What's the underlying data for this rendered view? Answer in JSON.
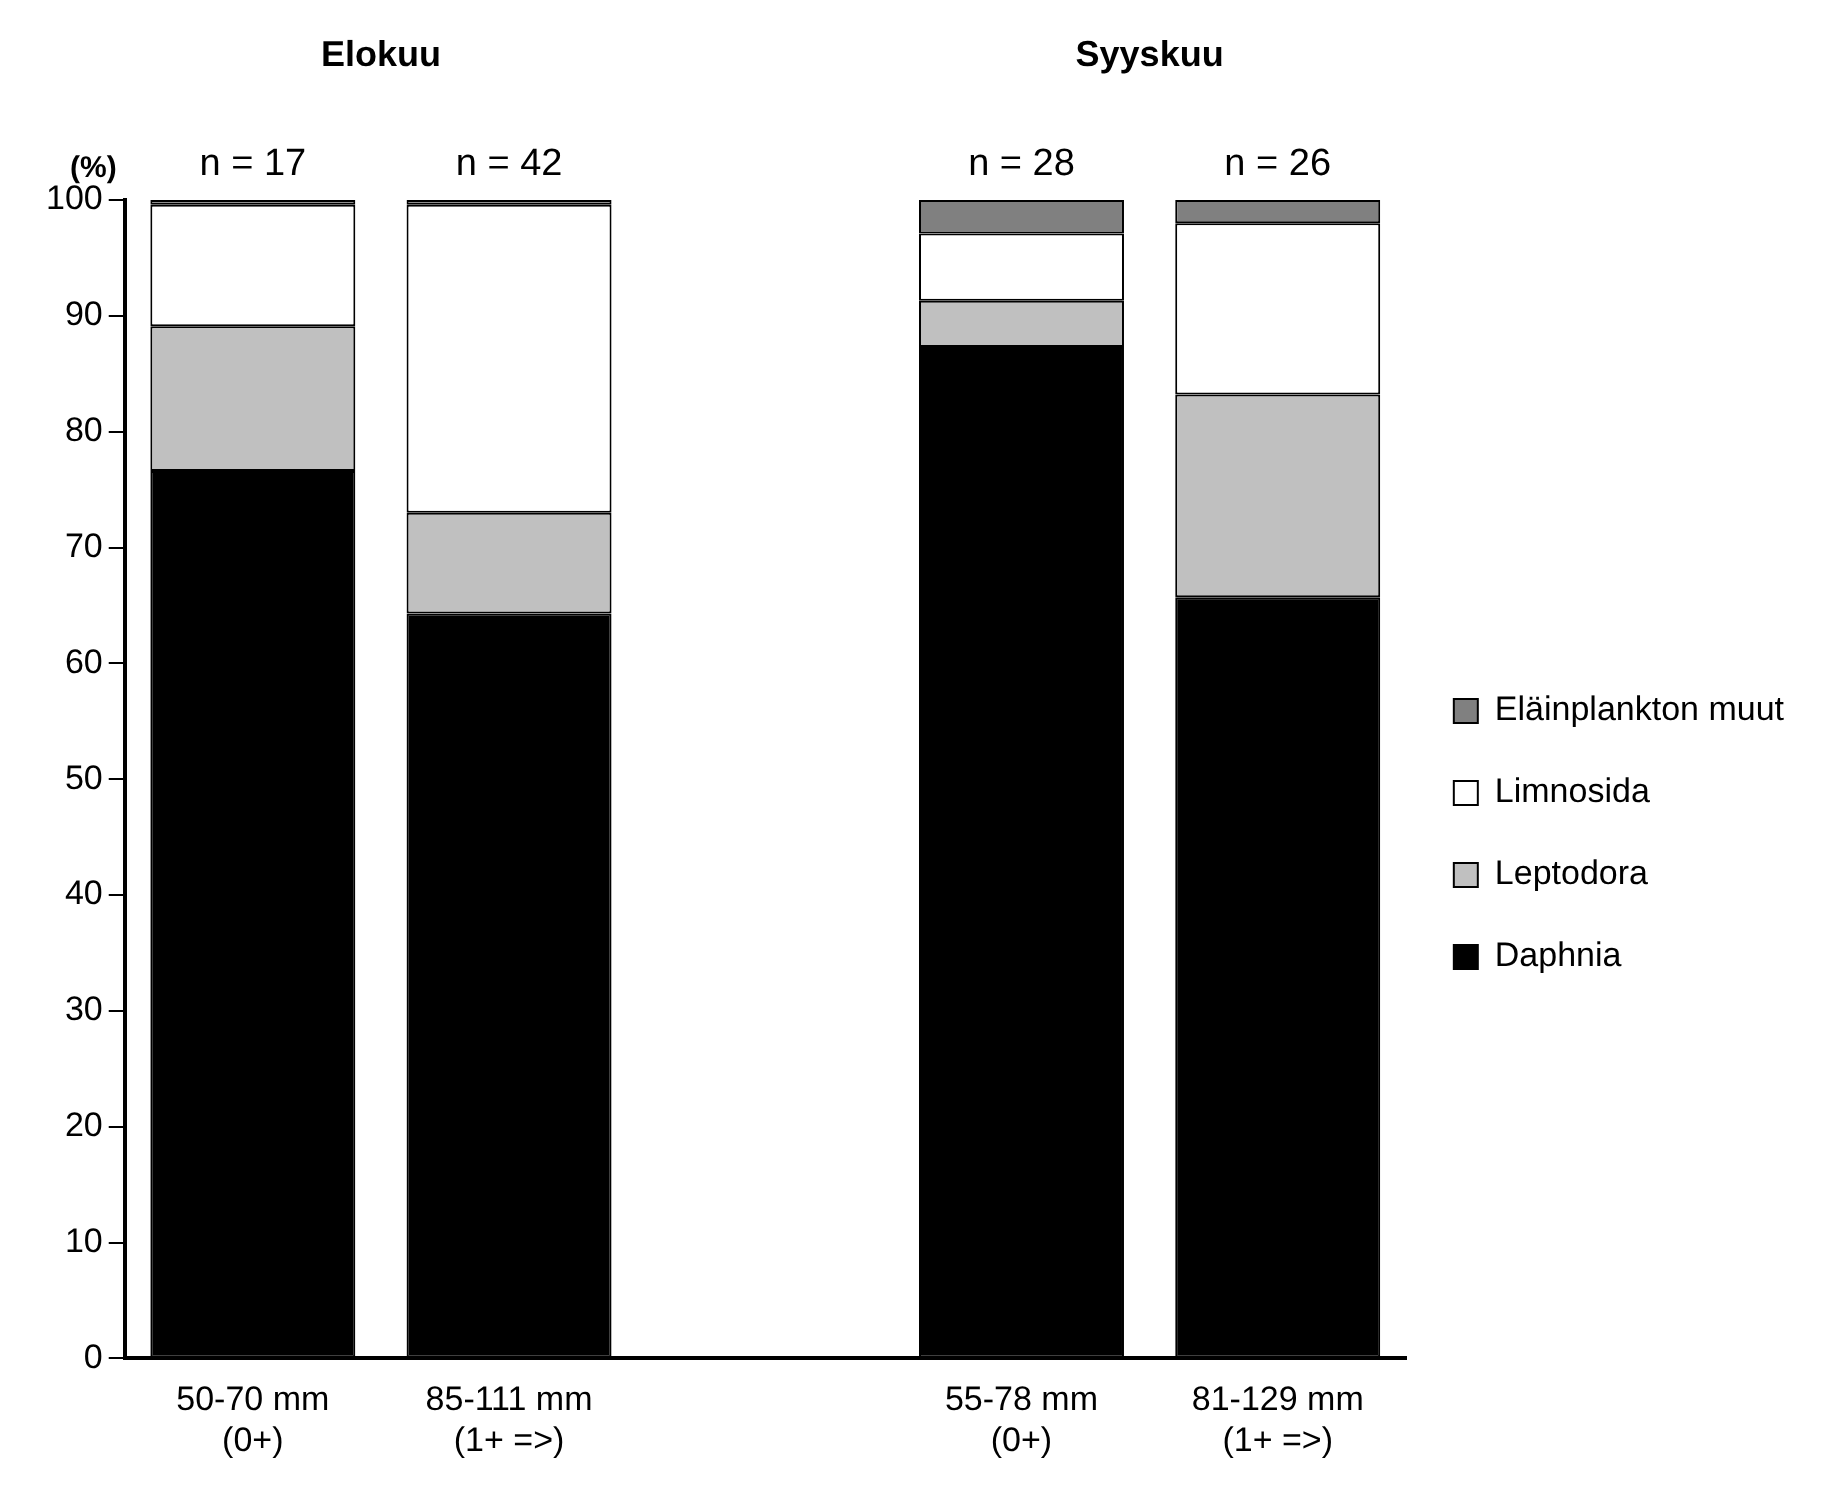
{
  "chart_data": {
    "type": "bar",
    "stacked": true,
    "ylabel": "(%)",
    "categories": [
      "50-70 mm (0+)",
      "85-111 mm (1+ =>)",
      null,
      "55-78 mm (0+)",
      "81-129 mm (1+ =>)"
    ],
    "series": [
      {
        "name": "Daphnia",
        "color": "#000000",
        "values": [
          76.6,
          64.3,
          null,
          87.3,
          65.7
        ]
      },
      {
        "name": "Leptodora",
        "color": "#c0c0c0",
        "values": [
          12.5,
          8.7,
          null,
          4.0,
          17.5
        ]
      },
      {
        "name": "Limnosida",
        "color": "#ffffff",
        "values": [
          10.5,
          26.6,
          null,
          5.8,
          14.8
        ]
      },
      {
        "name": "Eläinplankton muut",
        "color": "#808080",
        "values": [
          0.4,
          0.4,
          null,
          2.9,
          2.0
        ]
      }
    ],
    "ylim": [
      0,
      100
    ],
    "yticks": [
      0,
      10,
      20,
      30,
      40,
      50,
      60,
      70,
      80,
      90,
      100
    ],
    "grid": false,
    "legend": "right",
    "annotations": [
      "Elokuu",
      "Syyskuu",
      {
        "text": "n = 17",
        "x": "50-70 mm (0+)",
        "y": 100
      },
      {
        "text": "n = 42",
        "x": "85-111 mm (1+ =>)",
        "y": 100
      },
      {
        "text": "n = 28",
        "x": "55-78 mm (0+)",
        "y": 100
      },
      {
        "text": "n = 26",
        "x": "81-129 mm (1+ =>)",
        "y": 100
      }
    ]
  }
}
